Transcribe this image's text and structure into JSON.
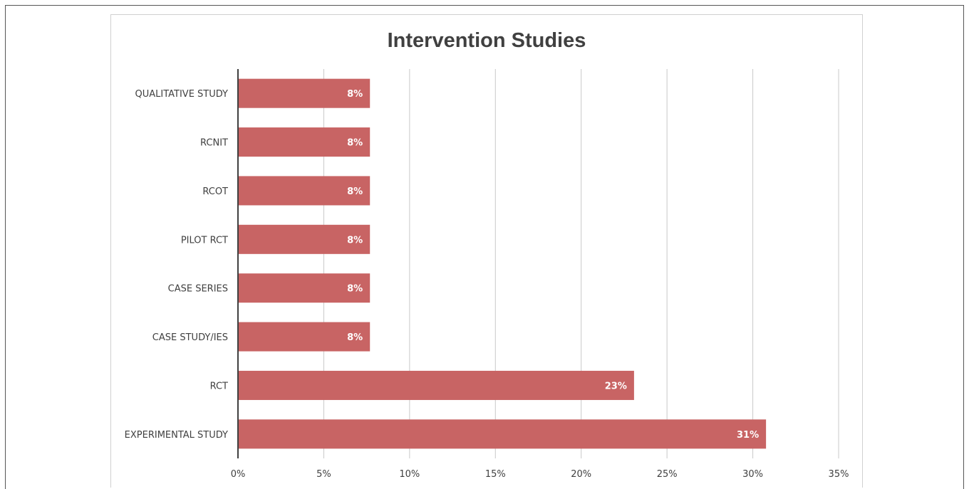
{
  "chart_data": {
    "type": "bar",
    "orientation": "horizontal",
    "title": "Intervention Studies",
    "xlabel": "",
    "ylabel": "",
    "categories": [
      "QUALITATIVE STUDY",
      "RCNIT",
      "RCOT",
      "PILOT RCT",
      "CASE SERIES",
      "CASE STUDY/IES",
      "RCT",
      "EXPERIMENTAL STUDY"
    ],
    "values": [
      7.69,
      7.69,
      7.69,
      7.69,
      7.69,
      7.69,
      23.08,
      30.77
    ],
    "data_labels": [
      "8%",
      "8%",
      "8%",
      "8%",
      "8%",
      "8%",
      "23%",
      "31%"
    ],
    "xlim": [
      0,
      35
    ],
    "x_ticks": [
      0,
      5,
      10,
      15,
      20,
      25,
      30,
      35
    ],
    "x_tick_labels": [
      "0%",
      "5%",
      "10%",
      "15%",
      "20%",
      "25%",
      "30%",
      "35%"
    ],
    "grid": "vertical",
    "legend": "none",
    "colors": {
      "bar": "#c86464",
      "grid": "#c8c8c8",
      "axis": "#404040",
      "text": "#404040"
    }
  }
}
